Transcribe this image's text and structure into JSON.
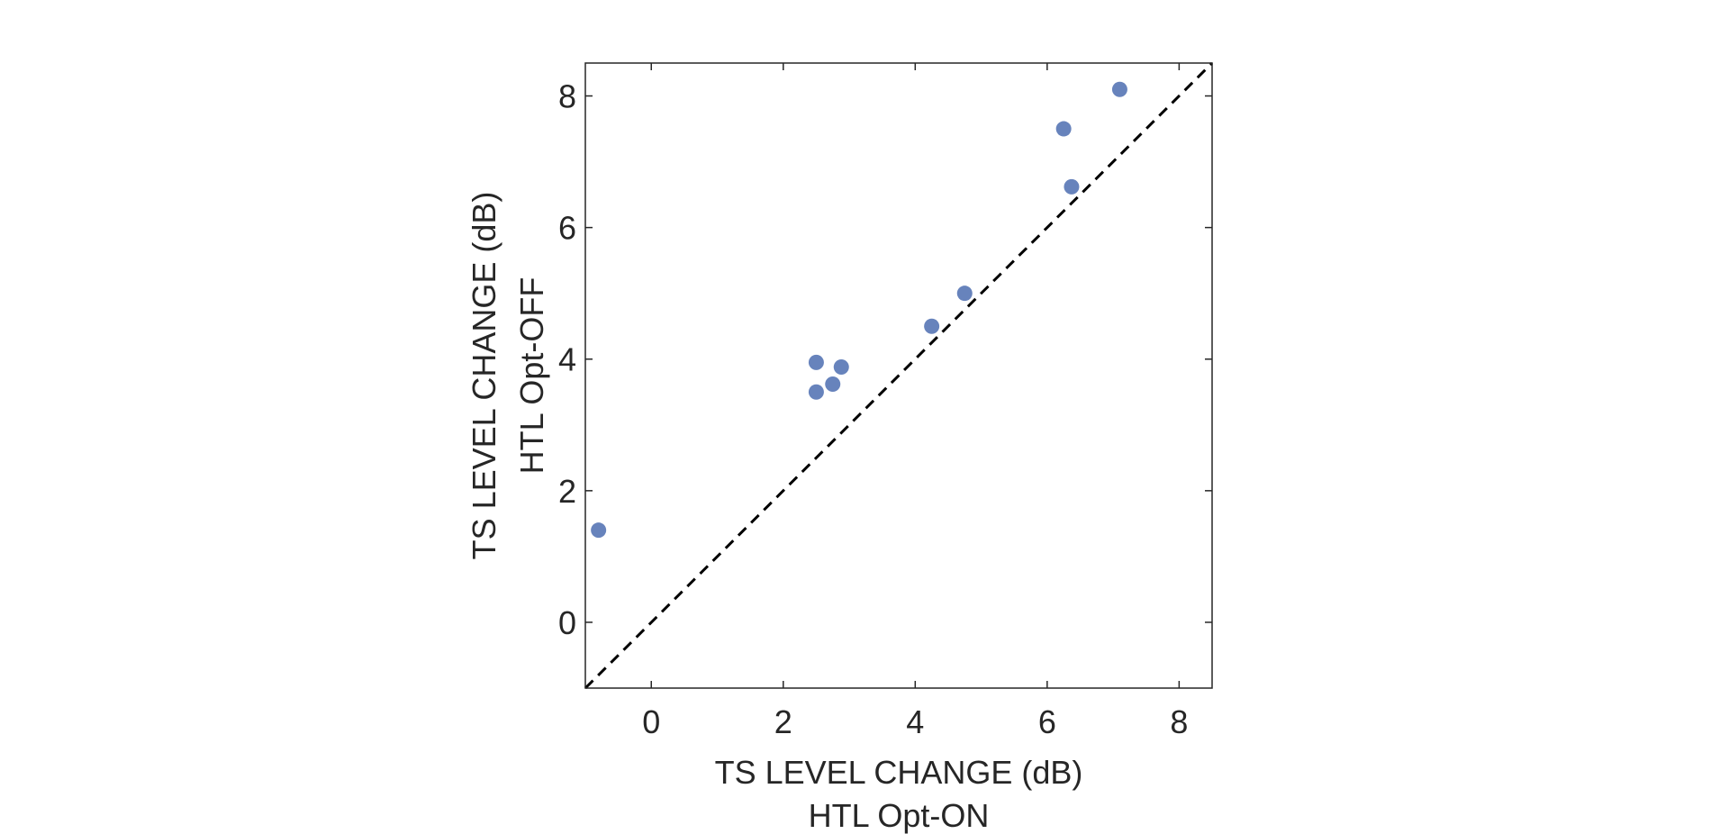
{
  "chart_data": {
    "type": "scatter",
    "title": "",
    "xlabel": [
      "TS LEVEL CHANGE (dB)",
      "HTL Opt-ON"
    ],
    "ylabel": [
      "TS LEVEL CHANGE (dB)",
      "HTL Opt-OFF"
    ],
    "xlim": [
      -1,
      8.5
    ],
    "ylim": [
      -1,
      8.5
    ],
    "xticks": [
      0,
      2,
      4,
      6,
      8
    ],
    "yticks": [
      0,
      2,
      4,
      6,
      8
    ],
    "grid": false,
    "reference_line": {
      "type": "identity",
      "style": "dashed",
      "from": [
        -1,
        -1
      ],
      "to": [
        8.5,
        8.5
      ]
    },
    "marker_color": "#6783BC",
    "points": [
      {
        "x": -0.8,
        "y": 1.4
      },
      {
        "x": 2.5,
        "y": 3.95
      },
      {
        "x": 2.5,
        "y": 3.5
      },
      {
        "x": 2.75,
        "y": 3.62
      },
      {
        "x": 2.88,
        "y": 3.88
      },
      {
        "x": 4.25,
        "y": 4.5
      },
      {
        "x": 4.75,
        "y": 5.0
      },
      {
        "x": 6.25,
        "y": 7.5
      },
      {
        "x": 6.37,
        "y": 6.62
      },
      {
        "x": 7.1,
        "y": 8.1
      }
    ]
  }
}
